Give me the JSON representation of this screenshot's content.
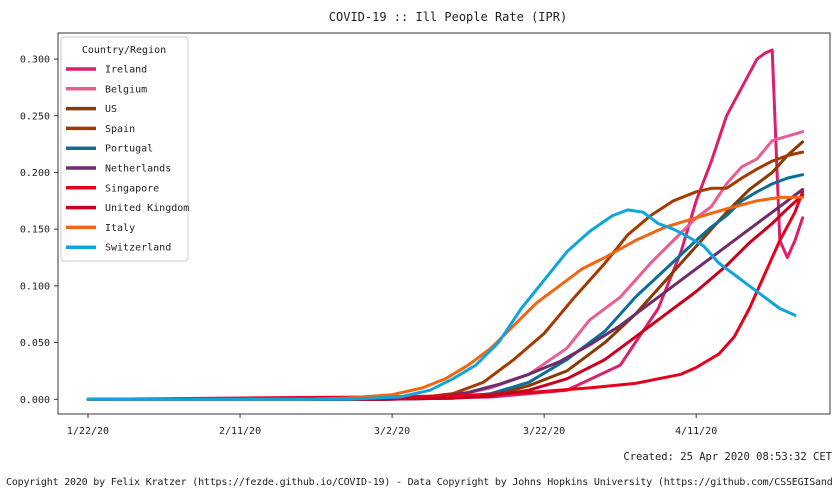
{
  "chart_data": {
    "type": "line",
    "title": "COVID-19 :: Ill People Rate (IPR)",
    "xlabel": "",
    "ylabel": "",
    "x_ticks": [
      "1/22/20",
      "2/11/20",
      "3/2/20",
      "3/22/20",
      "4/11/20"
    ],
    "y_ticks": [
      "0.000",
      "0.050",
      "0.100",
      "0.150",
      "0.200",
      "0.250",
      "0.300"
    ],
    "x_start": "1/22/20",
    "x_end": "4/24/20",
    "ylim": [
      -0.013,
      0.323
    ],
    "grid": false,
    "legend": {
      "title": "Country/Region",
      "placement": "top-left"
    },
    "series": [
      {
        "name": "Ireland",
        "color": "#dc1f6a",
        "points": [
          [
            "1/22/20",
            0
          ],
          [
            "3/1/20",
            0
          ],
          [
            "3/15/20",
            0.002
          ],
          [
            "3/25/20",
            0.008
          ],
          [
            "4/1/20",
            0.03
          ],
          [
            "4/6/20",
            0.08
          ],
          [
            "4/9/20",
            0.13
          ],
          [
            "4/11/20",
            0.175
          ],
          [
            "4/13/20",
            0.21
          ],
          [
            "4/15/20",
            0.25
          ],
          [
            "4/17/20",
            0.275
          ],
          [
            "4/19/20",
            0.3
          ],
          [
            "4/20/20",
            0.305
          ],
          [
            "4/21/20",
            0.308
          ],
          [
            "4/22/20",
            0.14
          ],
          [
            "4/23/20",
            0.125
          ],
          [
            "4/24/20",
            0.14
          ],
          [
            "4/25/20",
            0.16
          ]
        ]
      },
      {
        "name": "Belgium",
        "color": "#ea5d94",
        "points": [
          [
            "1/22/20",
            0
          ],
          [
            "3/1/20",
            0
          ],
          [
            "3/10/20",
            0.003
          ],
          [
            "3/15/20",
            0.01
          ],
          [
            "3/20/20",
            0.022
          ],
          [
            "3/25/20",
            0.045
          ],
          [
            "3/28/20",
            0.07
          ],
          [
            "4/1/20",
            0.09
          ],
          [
            "4/5/20",
            0.12
          ],
          [
            "4/8/20",
            0.14
          ],
          [
            "4/11/20",
            0.16
          ],
          [
            "4/13/20",
            0.17
          ],
          [
            "4/15/20",
            0.19
          ],
          [
            "4/17/20",
            0.205
          ],
          [
            "4/19/20",
            0.212
          ],
          [
            "4/21/20",
            0.228
          ],
          [
            "4/23/20",
            0.232
          ],
          [
            "4/25/20",
            0.236
          ]
        ]
      },
      {
        "name": "US",
        "color": "#8a3a00",
        "points": [
          [
            "1/22/20",
            0
          ],
          [
            "3/1/20",
            0
          ],
          [
            "3/10/20",
            0.001
          ],
          [
            "3/15/20",
            0.003
          ],
          [
            "3/20/20",
            0.012
          ],
          [
            "3/25/20",
            0.025
          ],
          [
            "3/30/20",
            0.05
          ],
          [
            "4/3/20",
            0.075
          ],
          [
            "4/7/20",
            0.105
          ],
          [
            "4/11/20",
            0.135
          ],
          [
            "4/15/20",
            0.165
          ],
          [
            "4/18/20",
            0.185
          ],
          [
            "4/21/20",
            0.2
          ],
          [
            "4/23/20",
            0.215
          ],
          [
            "4/25/20",
            0.227
          ]
        ]
      },
      {
        "name": "Spain",
        "color": "#a33a00",
        "points": [
          [
            "1/22/20",
            0
          ],
          [
            "2/28/20",
            0
          ],
          [
            "3/5/20",
            0.001
          ],
          [
            "3/10/20",
            0.005
          ],
          [
            "3/14/20",
            0.015
          ],
          [
            "3/18/20",
            0.035
          ],
          [
            "3/22/20",
            0.058
          ],
          [
            "3/26/20",
            0.09
          ],
          [
            "3/30/20",
            0.12
          ],
          [
            "4/2/20",
            0.145
          ],
          [
            "4/5/20",
            0.162
          ],
          [
            "4/8/20",
            0.175
          ],
          [
            "4/11/20",
            0.183
          ],
          [
            "4/13/20",
            0.186
          ],
          [
            "4/15/20",
            0.186
          ],
          [
            "4/17/20",
            0.195
          ],
          [
            "4/19/20",
            0.203
          ],
          [
            "4/21/20",
            0.21
          ],
          [
            "4/23/20",
            0.215
          ],
          [
            "4/25/20",
            0.218
          ]
        ]
      },
      {
        "name": "Portugal",
        "color": "#0b6e99",
        "points": [
          [
            "1/22/20",
            0
          ],
          [
            "3/1/20",
            0
          ],
          [
            "3/10/20",
            0.001
          ],
          [
            "3/15/20",
            0.005
          ],
          [
            "3/20/20",
            0.015
          ],
          [
            "3/25/20",
            0.035
          ],
          [
            "3/30/20",
            0.06
          ],
          [
            "4/3/20",
            0.09
          ],
          [
            "4/7/20",
            0.115
          ],
          [
            "4/11/20",
            0.14
          ],
          [
            "4/13/20",
            0.152
          ],
          [
            "4/15/20",
            0.162
          ],
          [
            "4/17/20",
            0.175
          ],
          [
            "4/19/20",
            0.183
          ],
          [
            "4/21/20",
            0.19
          ],
          [
            "4/23/20",
            0.195
          ],
          [
            "4/25/20",
            0.198
          ]
        ]
      },
      {
        "name": "Netherlands",
        "color": "#6e2c6b",
        "points": [
          [
            "1/22/20",
            0
          ],
          [
            "3/1/20",
            0
          ],
          [
            "3/8/20",
            0.002
          ],
          [
            "3/12/20",
            0.006
          ],
          [
            "3/16/20",
            0.013
          ],
          [
            "3/20/20",
            0.022
          ],
          [
            "3/24/20",
            0.033
          ],
          [
            "3/28/20",
            0.048
          ],
          [
            "4/1/20",
            0.065
          ],
          [
            "4/5/20",
            0.085
          ],
          [
            "4/9/20",
            0.105
          ],
          [
            "4/13/20",
            0.125
          ],
          [
            "4/17/20",
            0.145
          ],
          [
            "4/21/20",
            0.165
          ],
          [
            "4/25/20",
            0.185
          ]
        ]
      },
      {
        "name": "Singapore",
        "color": "#e6001e",
        "points": [
          [
            "1/22/20",
            0
          ],
          [
            "2/10/20",
            0.001
          ],
          [
            "2/28/20",
            0.002
          ],
          [
            "3/10/20",
            0.003
          ],
          [
            "3/20/20",
            0.006
          ],
          [
            "3/28/20",
            0.01
          ],
          [
            "4/3/20",
            0.014
          ],
          [
            "4/6/20",
            0.018
          ],
          [
            "4/9/20",
            0.022
          ],
          [
            "4/11/20",
            0.028
          ],
          [
            "4/14/20",
            0.04
          ],
          [
            "4/16/20",
            0.055
          ],
          [
            "4/18/20",
            0.08
          ],
          [
            "4/20/20",
            0.11
          ],
          [
            "4/22/20",
            0.14
          ],
          [
            "4/24/20",
            0.165
          ],
          [
            "4/25/20",
            0.183
          ]
        ]
      },
      {
        "name": "United Kingdom",
        "color": "#c8001e",
        "points": [
          [
            "1/22/20",
            0
          ],
          [
            "3/1/20",
            0
          ],
          [
            "3/10/20",
            0.001
          ],
          [
            "3/15/20",
            0.003
          ],
          [
            "3/20/20",
            0.008
          ],
          [
            "3/25/20",
            0.018
          ],
          [
            "3/30/20",
            0.035
          ],
          [
            "4/3/20",
            0.055
          ],
          [
            "4/7/20",
            0.075
          ],
          [
            "4/11/20",
            0.095
          ],
          [
            "4/15/20",
            0.118
          ],
          [
            "4/18/20",
            0.138
          ],
          [
            "4/21/20",
            0.155
          ],
          [
            "4/23/20",
            0.168
          ],
          [
            "4/25/20",
            0.18
          ]
        ]
      },
      {
        "name": "Italy",
        "color": "#f26511",
        "points": [
          [
            "1/22/20",
            0
          ],
          [
            "2/20/20",
            0
          ],
          [
            "2/25/20",
            0.001
          ],
          [
            "3/2/20",
            0.004
          ],
          [
            "3/6/20",
            0.01
          ],
          [
            "3/9/20",
            0.018
          ],
          [
            "3/12/20",
            0.03
          ],
          [
            "3/15/20",
            0.045
          ],
          [
            "3/18/20",
            0.065
          ],
          [
            "3/21/20",
            0.085
          ],
          [
            "3/24/20",
            0.1
          ],
          [
            "3/27/20",
            0.115
          ],
          [
            "3/30/20",
            0.125
          ],
          [
            "4/3/20",
            0.14
          ],
          [
            "4/7/20",
            0.152
          ],
          [
            "4/11/20",
            0.16
          ],
          [
            "4/15/20",
            0.168
          ],
          [
            "4/19/20",
            0.175
          ],
          [
            "4/22/20",
            0.178
          ],
          [
            "4/25/20",
            0.178
          ]
        ]
      },
      {
        "name": "Switzerland",
        "color": "#0ea5dd",
        "points": [
          [
            "1/22/20",
            0
          ],
          [
            "2/25/20",
            0
          ],
          [
            "3/3/20",
            0.002
          ],
          [
            "3/7/20",
            0.008
          ],
          [
            "3/10/20",
            0.018
          ],
          [
            "3/13/20",
            0.03
          ],
          [
            "3/16/20",
            0.05
          ],
          [
            "3/19/20",
            0.08
          ],
          [
            "3/22/20",
            0.105
          ],
          [
            "3/25/20",
            0.13
          ],
          [
            "3/28/20",
            0.148
          ],
          [
            "3/31/20",
            0.162
          ],
          [
            "4/2/20",
            0.167
          ],
          [
            "4/4/20",
            0.165
          ],
          [
            "4/6/20",
            0.155
          ],
          [
            "4/8/20",
            0.15
          ],
          [
            "4/10/20",
            0.143
          ],
          [
            "4/12/20",
            0.135
          ],
          [
            "4/14/20",
            0.12
          ],
          [
            "4/16/20",
            0.11
          ],
          [
            "4/18/20",
            0.1
          ],
          [
            "4/20/20",
            0.09
          ],
          [
            "4/22/20",
            0.08
          ],
          [
            "4/24/20",
            0.074
          ]
        ]
      }
    ]
  },
  "footer": {
    "created": "Created: 25 Apr 2020 08:53:32 CET",
    "copyright": "Copyright 2020 by Felix Kratzer (https://fezde.github.io/COVID-19) - Data Copyright by Johns Hopkins University (https://github.com/CSSEGISandData/COVID-19)"
  }
}
